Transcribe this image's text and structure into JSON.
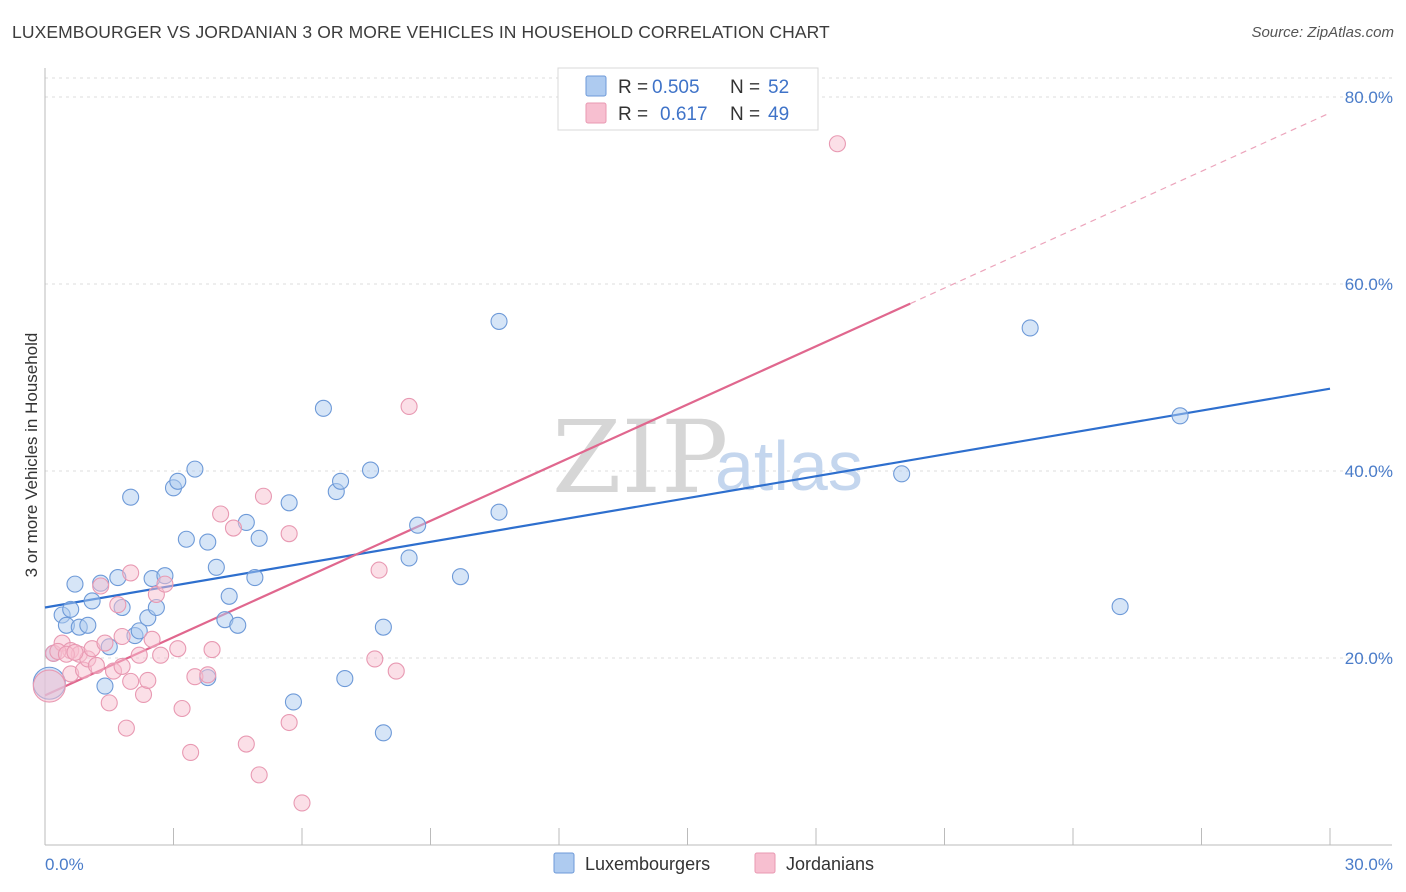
{
  "title": "LUXEMBOURGER VS JORDANIAN 3 OR MORE VEHICLES IN HOUSEHOLD CORRELATION CHART",
  "source": "Source: ZipAtlas.com",
  "watermark": {
    "zip": "ZIP",
    "atlas": "atlas"
  },
  "colors": {
    "blue_fill": "#aecbf0",
    "blue_stroke": "#6e9ad8",
    "blue_line": "#2e6fce",
    "pink_fill": "#f7bfd0",
    "pink_stroke": "#e899b2",
    "pink_line": "#e0678e",
    "axis_label": "#4a7cc9",
    "grid": "#dddddd"
  },
  "legend": {
    "items": [
      {
        "r_label": "R =",
        "r_value": "0.505",
        "n_label": "N =",
        "n_value": "52"
      },
      {
        "r_label": "R =",
        "r_value": "0.617",
        "n_label": "N =",
        "n_value": "49"
      }
    ]
  },
  "chart_data": {
    "type": "scatter",
    "title": "LUXEMBOURGER VS JORDANIAN 3 OR MORE VEHICLES IN HOUSEHOLD CORRELATION CHART",
    "xlabel": "",
    "ylabel": "3 or more Vehicles in Household",
    "xlim": [
      0,
      30
    ],
    "ylim": [
      0,
      82
    ],
    "x_tick_labels": [
      "0.0%",
      "30.0%"
    ],
    "y_ticks": [
      20,
      40,
      60,
      80
    ],
    "y_tick_labels": [
      "20.0%",
      "40.0%",
      "60.0%",
      "80.0%"
    ],
    "grid": true,
    "legend_position": "top-center",
    "series": [
      {
        "name": "Luxembourgers",
        "color": "blue",
        "trend": {
          "x": [
            0,
            30
          ],
          "y": [
            25.4,
            48.8
          ],
          "dashed_to": null
        },
        "points": [
          [
            0.2,
            20.5
          ],
          [
            0.4,
            24.6
          ],
          [
            0.5,
            23.5
          ],
          [
            0.6,
            25.2
          ],
          [
            0.7,
            27.9
          ],
          [
            0.8,
            23.3
          ],
          [
            1.0,
            23.5
          ],
          [
            1.1,
            26.1
          ],
          [
            1.3,
            28.0
          ],
          [
            1.4,
            17.0
          ],
          [
            1.5,
            21.2
          ],
          [
            1.7,
            28.6
          ],
          [
            1.8,
            25.4
          ],
          [
            2.0,
            37.2
          ],
          [
            2.1,
            22.4
          ],
          [
            2.2,
            22.9
          ],
          [
            2.4,
            24.3
          ],
          [
            2.5,
            28.5
          ],
          [
            2.6,
            25.4
          ],
          [
            2.8,
            28.8
          ],
          [
            3.0,
            38.2
          ],
          [
            3.1,
            38.9
          ],
          [
            3.3,
            32.7
          ],
          [
            3.5,
            40.2
          ],
          [
            3.8,
            32.4
          ],
          [
            3.8,
            17.9
          ],
          [
            4.0,
            29.7
          ],
          [
            4.2,
            24.1
          ],
          [
            4.3,
            26.6
          ],
          [
            4.5,
            23.5
          ],
          [
            4.7,
            34.5
          ],
          [
            4.9,
            28.6
          ],
          [
            5.0,
            32.8
          ],
          [
            5.7,
            36.6
          ],
          [
            5.8,
            15.3
          ],
          [
            6.5,
            46.7
          ],
          [
            6.8,
            37.8
          ],
          [
            6.9,
            38.9
          ],
          [
            7.0,
            17.8
          ],
          [
            7.6,
            40.1
          ],
          [
            7.9,
            23.3
          ],
          [
            7.9,
            12.0
          ],
          [
            8.5,
            30.7
          ],
          [
            8.7,
            34.2
          ],
          [
            9.7,
            28.7
          ],
          [
            10.6,
            35.6
          ],
          [
            10.6,
            56.0
          ],
          [
            20.0,
            39.7
          ],
          [
            23.0,
            55.3
          ],
          [
            25.1,
            25.5
          ],
          [
            26.5,
            45.9
          ],
          [
            0.1,
            17.3
          ]
        ],
        "large_point": [
          0.1,
          17.3
        ]
      },
      {
        "name": "Jordanians",
        "color": "pink",
        "trend": {
          "x": [
            0,
            20.2
          ],
          "y": [
            16.0,
            57.9
          ],
          "dashed_to": [
            30,
            78.3
          ]
        },
        "points": [
          [
            0.2,
            20.5
          ],
          [
            0.4,
            21.6
          ],
          [
            0.6,
            20.8
          ],
          [
            0.6,
            18.3
          ],
          [
            0.8,
            20.4
          ],
          [
            0.9,
            18.7
          ],
          [
            1.0,
            19.9
          ],
          [
            1.1,
            21.0
          ],
          [
            1.3,
            27.7
          ],
          [
            1.4,
            21.6
          ],
          [
            1.5,
            15.2
          ],
          [
            1.6,
            18.6
          ],
          [
            1.7,
            25.7
          ],
          [
            1.8,
            19.1
          ],
          [
            1.8,
            22.3
          ],
          [
            1.9,
            12.5
          ],
          [
            2.0,
            17.5
          ],
          [
            2.0,
            29.1
          ],
          [
            2.2,
            20.3
          ],
          [
            2.3,
            16.1
          ],
          [
            2.4,
            17.6
          ],
          [
            2.5,
            22.0
          ],
          [
            2.6,
            26.8
          ],
          [
            2.7,
            20.3
          ],
          [
            2.8,
            27.9
          ],
          [
            3.1,
            21.0
          ],
          [
            3.2,
            14.6
          ],
          [
            3.4,
            9.9
          ],
          [
            3.5,
            18.0
          ],
          [
            3.8,
            18.2
          ],
          [
            3.9,
            20.9
          ],
          [
            4.1,
            35.4
          ],
          [
            4.4,
            33.9
          ],
          [
            4.7,
            10.8
          ],
          [
            5.0,
            7.5
          ],
          [
            5.1,
            37.3
          ],
          [
            5.7,
            13.1
          ],
          [
            5.7,
            33.3
          ],
          [
            6.0,
            4.5
          ],
          [
            7.7,
            19.9
          ],
          [
            7.8,
            29.4
          ],
          [
            8.2,
            18.6
          ],
          [
            8.5,
            46.9
          ],
          [
            18.5,
            75.0
          ],
          [
            0.3,
            20.7
          ],
          [
            0.5,
            20.4
          ],
          [
            0.7,
            20.6
          ],
          [
            1.2,
            19.2
          ],
          [
            0.1,
            17.0
          ]
        ],
        "large_point": [
          0.1,
          17.0
        ]
      }
    ]
  },
  "bottom_legend": {
    "items": [
      "Luxembourgers",
      "Jordanians"
    ]
  }
}
